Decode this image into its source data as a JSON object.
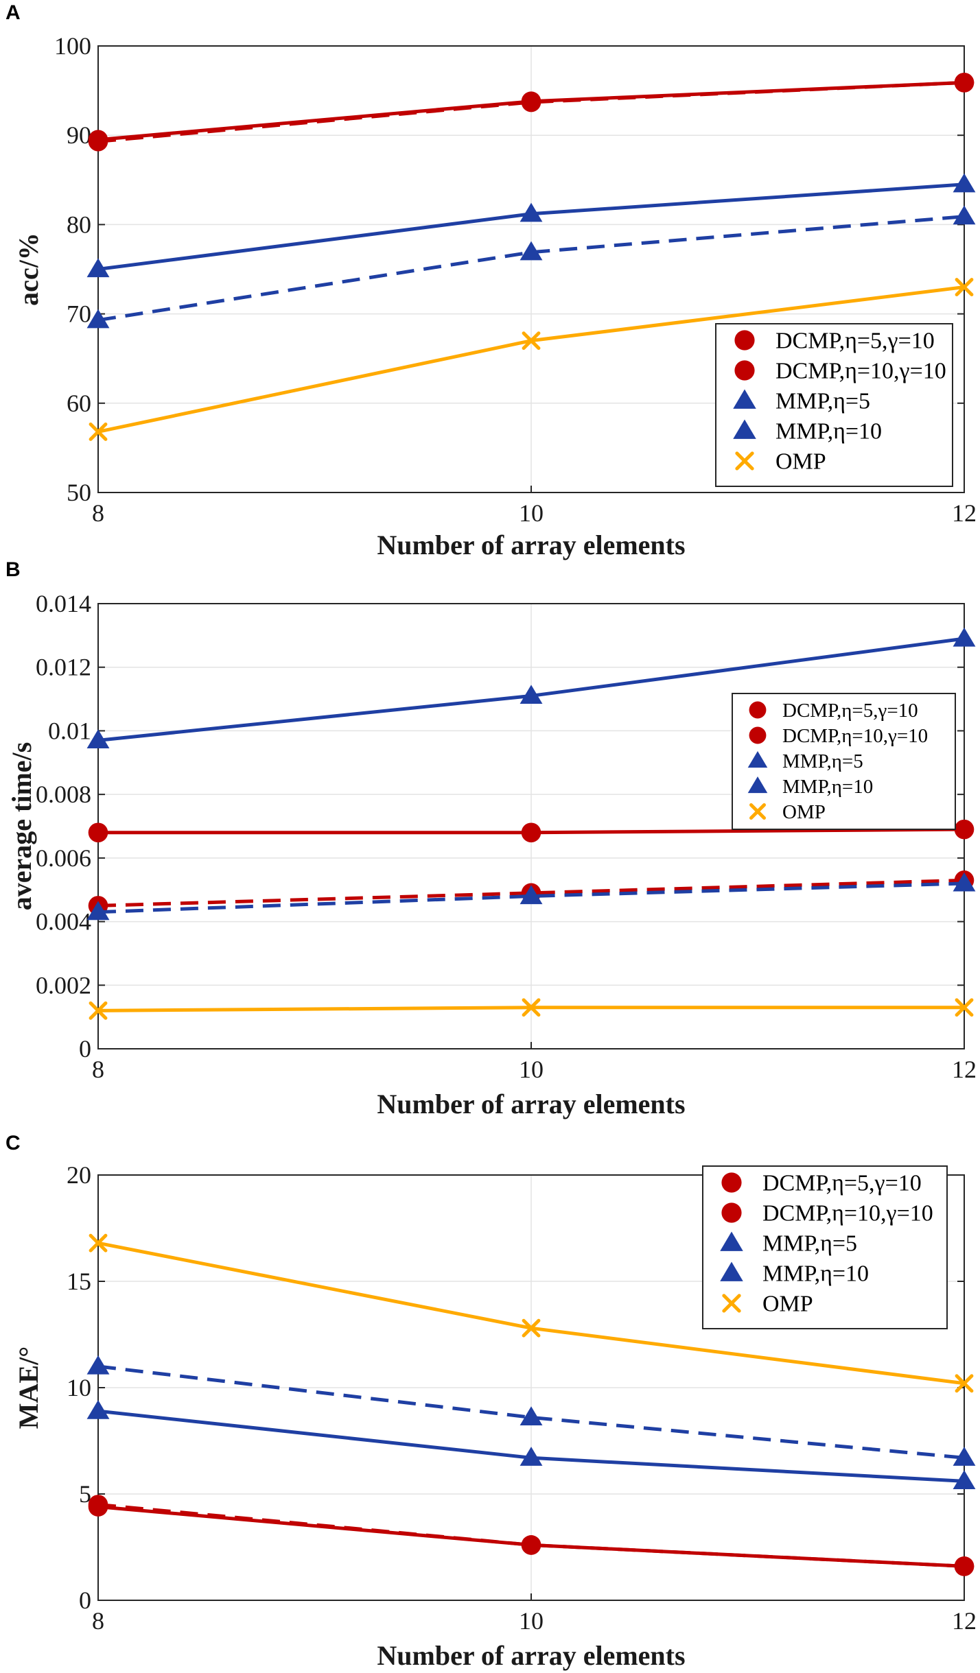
{
  "colors": {
    "dcmp": "#C00000",
    "mmp": "#1F3FA3",
    "omp": "#FFAA00"
  },
  "chart_data": [
    {
      "panel": "A",
      "type": "line",
      "xlabel": "Number of array elements",
      "ylabel": "acc/%",
      "x": [
        8,
        10,
        12
      ],
      "xlim": [
        8,
        12
      ],
      "ylim": [
        50,
        100
      ],
      "xticks": [
        "8",
        "10",
        "12"
      ],
      "yticks": [
        "50",
        "60",
        "70",
        "80",
        "90",
        "100"
      ],
      "ytick_values": [
        50,
        60,
        70,
        80,
        90,
        100
      ],
      "grid": true,
      "legend_position": "bottom-right",
      "series": [
        {
          "name": "DCMP,η=5,γ=10",
          "values": [
            89.5,
            93.8,
            95.9
          ],
          "color": "dcmp",
          "marker": "circle",
          "dash": "solid"
        },
        {
          "name": "DCMP,η=10,γ=10",
          "values": [
            89.3,
            93.7,
            95.9
          ],
          "color": "dcmp",
          "marker": "circle",
          "dash": "dashed"
        },
        {
          "name": "MMP,η=5",
          "values": [
            69.3,
            76.9,
            80.9
          ],
          "color": "mmp",
          "marker": "triangle",
          "dash": "dashed"
        },
        {
          "name": "MMP,η=10",
          "values": [
            75.0,
            81.2,
            84.5
          ],
          "color": "mmp",
          "marker": "triangle",
          "dash": "solid"
        },
        {
          "name": "OMP",
          "values": [
            56.8,
            67.0,
            73.0
          ],
          "color": "omp",
          "marker": "cross",
          "dash": "solid"
        }
      ]
    },
    {
      "panel": "B",
      "type": "line",
      "xlabel": "Number of array elements",
      "ylabel": "average time/s",
      "x": [
        8,
        10,
        12
      ],
      "xlim": [
        8,
        12
      ],
      "ylim": [
        0,
        0.014
      ],
      "xticks": [
        "8",
        "10",
        "12"
      ],
      "yticks": [
        "0",
        "0.002",
        "0.004",
        "0.006",
        "0.008",
        "0.01",
        "0.012",
        "0.014"
      ],
      "ytick_values": [
        0,
        0.002,
        0.004,
        0.006,
        0.008,
        0.01,
        0.012,
        0.014
      ],
      "grid": true,
      "legend_position": "top-right",
      "series": [
        {
          "name": "DCMP,η=5,γ=10",
          "values": [
            0.0068,
            0.0068,
            0.0069
          ],
          "color": "dcmp",
          "marker": "circle",
          "dash": "solid"
        },
        {
          "name": "DCMP,η=10,γ=10",
          "values": [
            0.0045,
            0.0049,
            0.0053
          ],
          "color": "dcmp",
          "marker": "circle",
          "dash": "dashed"
        },
        {
          "name": "MMP,η=5",
          "values": [
            0.0043,
            0.0048,
            0.0052
          ],
          "color": "mmp",
          "marker": "triangle",
          "dash": "dashed"
        },
        {
          "name": "MMP,η=10",
          "values": [
            0.0097,
            0.0111,
            0.0129
          ],
          "color": "mmp",
          "marker": "triangle",
          "dash": "solid"
        },
        {
          "name": "OMP",
          "values": [
            0.0012,
            0.0013,
            0.0013
          ],
          "color": "omp",
          "marker": "cross",
          "dash": "solid"
        }
      ]
    },
    {
      "panel": "C",
      "type": "line",
      "xlabel": "Number of array elements",
      "ylabel": "MAE/°",
      "x": [
        8,
        10,
        12
      ],
      "xlim": [
        8,
        12
      ],
      "ylim": [
        0,
        20
      ],
      "xticks": [
        "8",
        "10",
        "12"
      ],
      "yticks": [
        "0",
        "5",
        "10",
        "15",
        "20"
      ],
      "ytick_values": [
        0,
        5,
        10,
        15,
        20
      ],
      "grid": true,
      "legend_position": "top-right",
      "series": [
        {
          "name": "DCMP,η=5,γ=10",
          "values": [
            4.4,
            2.6,
            1.6
          ],
          "color": "dcmp",
          "marker": "circle",
          "dash": "solid"
        },
        {
          "name": "DCMP,η=10,γ=10",
          "values": [
            4.5,
            2.6,
            1.6
          ],
          "color": "dcmp",
          "marker": "circle",
          "dash": "dashed"
        },
        {
          "name": "MMP,η=5",
          "values": [
            11.0,
            8.6,
            6.7
          ],
          "color": "mmp",
          "marker": "triangle",
          "dash": "dashed"
        },
        {
          "name": "MMP,η=10",
          "values": [
            8.9,
            6.7,
            5.6
          ],
          "color": "mmp",
          "marker": "triangle",
          "dash": "solid"
        },
        {
          "name": "OMP",
          "values": [
            16.8,
            12.8,
            10.2
          ],
          "color": "omp",
          "marker": "cross",
          "dash": "solid"
        }
      ]
    }
  ]
}
